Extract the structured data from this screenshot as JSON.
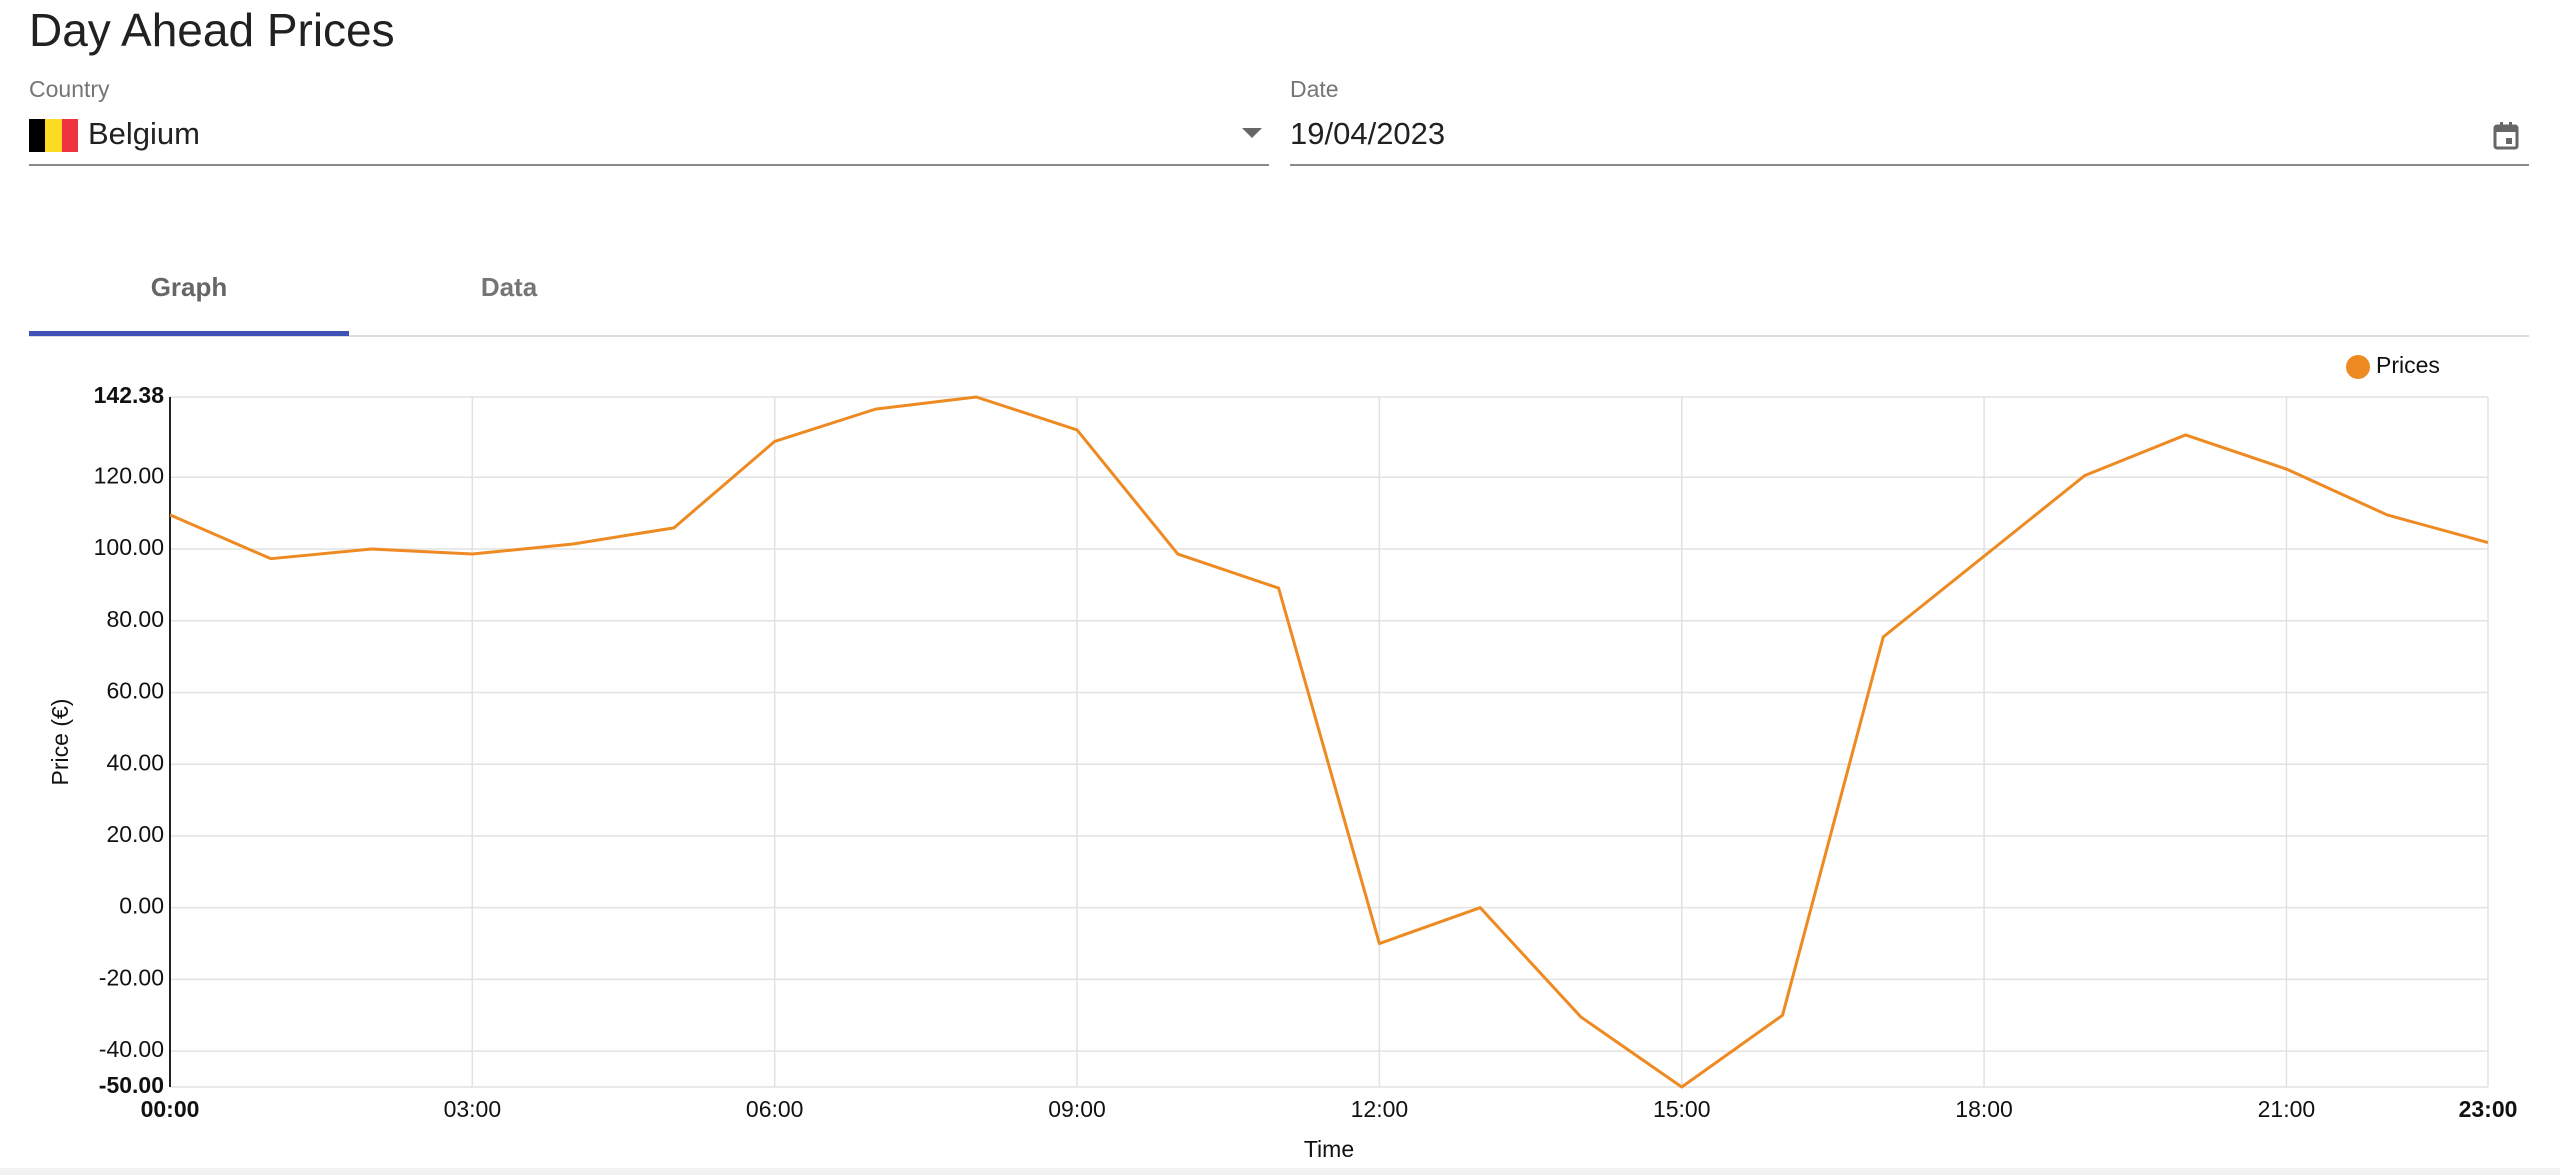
{
  "header": {
    "title": "Day Ahead Prices"
  },
  "form": {
    "country": {
      "label": "Country",
      "value": "Belgium"
    },
    "date": {
      "label": "Date",
      "value": "19/04/2023"
    }
  },
  "tabs": [
    "Graph",
    "Data"
  ],
  "chart_data": {
    "type": "line",
    "x_label": "Time",
    "y_label": "Price (€)",
    "x": [
      0,
      1,
      2,
      3,
      4,
      5,
      6,
      7,
      8,
      9,
      10,
      11,
      12,
      13,
      14,
      15,
      16,
      17,
      18,
      19,
      20,
      21,
      22,
      23
    ],
    "series": [
      {
        "name": "Prices",
        "color": "#ee8a22",
        "values": [
          109.5,
          97.3,
          100,
          98.6,
          101.4,
          105.9,
          130,
          139,
          142.38,
          133.2,
          98.6,
          89.1,
          -10,
          0,
          -30.5,
          -50,
          -30,
          75.5,
          98,
          120.5,
          131.8,
          122.3,
          109.5,
          101.8
        ]
      }
    ],
    "xlim": [
      0,
      23
    ],
    "xticks": [
      {
        "value": 0,
        "label": "00:00"
      },
      {
        "value": 3,
        "label": "03:00"
      },
      {
        "value": 6,
        "label": "06:00"
      },
      {
        "value": 9,
        "label": "09:00"
      },
      {
        "value": 12,
        "label": "12:00"
      },
      {
        "value": 15,
        "label": "15:00"
      },
      {
        "value": 18,
        "label": "18:00"
      },
      {
        "value": 21,
        "label": "21:00"
      },
      {
        "value": 23,
        "label": "23:00"
      }
    ],
    "ylim": [
      -50,
      142.38
    ],
    "yticks": [
      {
        "value": -50,
        "label": "-50.00"
      },
      {
        "value": -40,
        "label": "-40.00"
      },
      {
        "value": -20,
        "label": "-20.00"
      },
      {
        "value": 0,
        "label": "0.00"
      },
      {
        "value": 20,
        "label": "20.00"
      },
      {
        "value": 40,
        "label": "40.00"
      },
      {
        "value": 60,
        "label": "60.00"
      },
      {
        "value": 80,
        "label": "80.00"
      },
      {
        "value": 100,
        "label": "100.00"
      },
      {
        "value": 120,
        "label": "120.00"
      },
      {
        "value": 142.38,
        "label": "142.38"
      }
    ],
    "grid": true,
    "legend": "top-right"
  }
}
